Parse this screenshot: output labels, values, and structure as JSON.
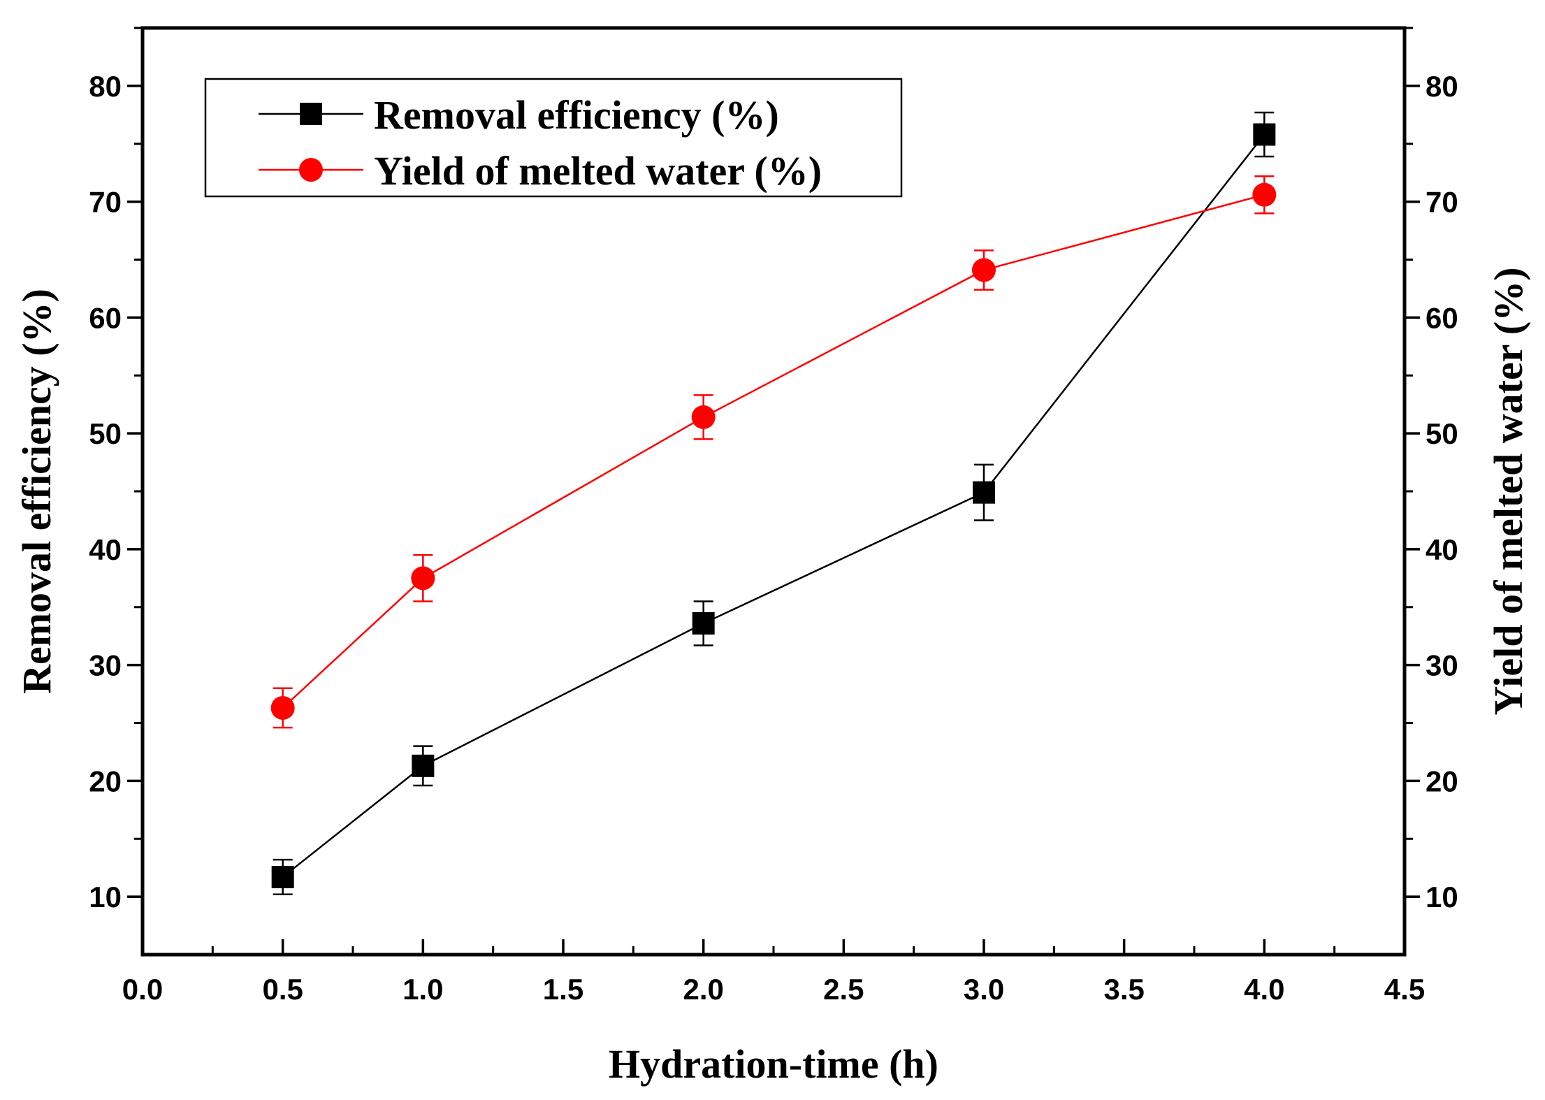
{
  "chart_data": {
    "type": "line",
    "title": "",
    "x": [
      0.5,
      1.0,
      2.0,
      3.0,
      4.0
    ],
    "xlabel": "Hydration-time (h)",
    "ylabel": "Removal efficiency (%)",
    "y2label": "Yield of melted water (%)",
    "xlim": [
      0.0,
      4.5
    ],
    "ylim": [
      5,
      85
    ],
    "y2lim": [
      5,
      85
    ],
    "xticks": [
      "0.0",
      "0.5",
      "1.0",
      "1.5",
      "2.0",
      "2.5",
      "3.0",
      "3.5",
      "4.0",
      "4.5"
    ],
    "yticks": [
      "10",
      "20",
      "30",
      "40",
      "50",
      "60",
      "70",
      "80"
    ],
    "y2ticks": [
      "10",
      "20",
      "30",
      "40",
      "50",
      "60",
      "70",
      "80"
    ],
    "grid": false,
    "legend_position": "top-left",
    "series": [
      {
        "name": "Removal efficiency (%)",
        "color": "#000000",
        "marker": "square",
        "axis": "left",
        "values": [
          11.7,
          21.3,
          33.6,
          44.9,
          75.8
        ],
        "errors": [
          1.5,
          1.7,
          1.9,
          2.4,
          1.9
        ]
      },
      {
        "name": "Yield of melted water (%)",
        "color": "#ff0000",
        "marker": "circle",
        "axis": "right",
        "values": [
          26.3,
          37.5,
          51.4,
          64.1,
          70.6
        ],
        "errors": [
          1.7,
          2.0,
          1.9,
          1.7,
          1.6
        ]
      }
    ]
  }
}
